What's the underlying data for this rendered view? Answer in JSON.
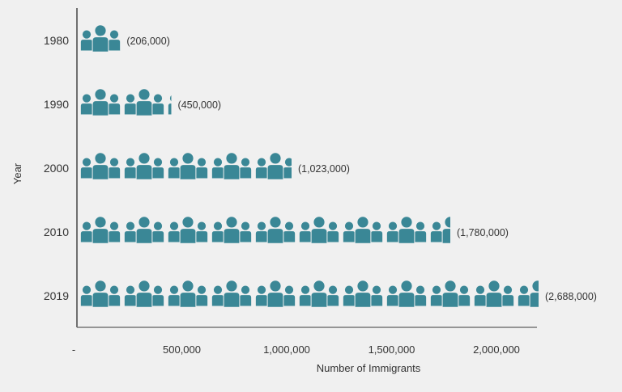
{
  "chart_data": {
    "type": "bar",
    "style": "pictogram",
    "categories": [
      "1980",
      "1990",
      "2000",
      "2010",
      "2019"
    ],
    "values": [
      206000,
      450000,
      1023000,
      1780000,
      2688000
    ],
    "data_labels": [
      "(206,000)",
      "(450,000)",
      "(1,023,000)",
      "(1,780,000)",
      "(2,688,000)"
    ],
    "xlabel": "Number of Immigrants",
    "ylabel": "Year",
    "xticks": [
      "-",
      "500,000",
      "1,000,000",
      "1,500,000",
      "2,000,000"
    ],
    "xtick_values": [
      0,
      500000,
      1000000,
      1500000,
      2000000
    ],
    "orientation": "horizontal",
    "grid": false,
    "icon": "people-group-icon",
    "color": "#3a8796"
  }
}
